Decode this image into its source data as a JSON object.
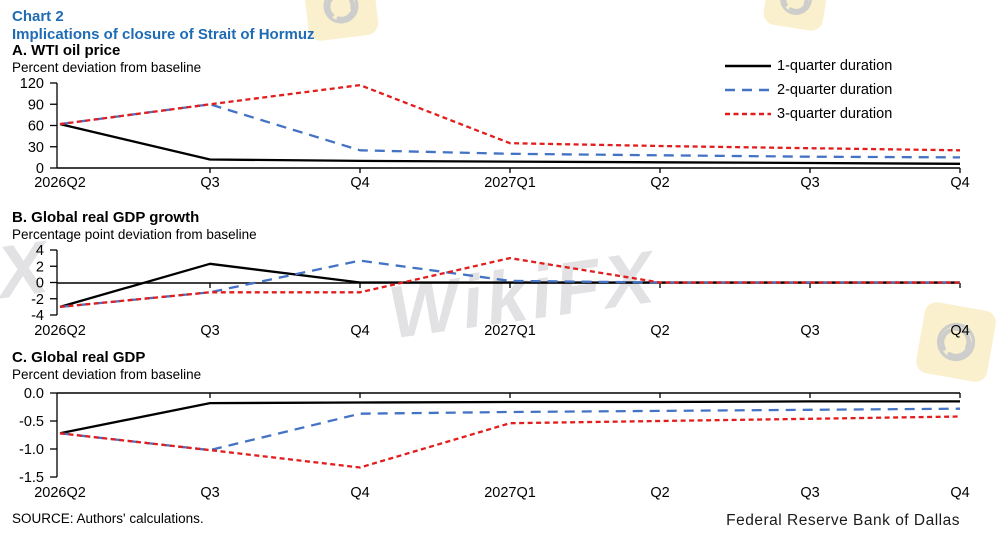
{
  "header": {
    "chart_label": "Chart 2",
    "title": "Implications of closure of Strait of Hormuz"
  },
  "legend": {
    "position": "top-right",
    "items": [
      {
        "label": "1-quarter duration"
      },
      {
        "label": "2-quarter duration"
      },
      {
        "label": "3-quarter duration"
      }
    ]
  },
  "colors": {
    "header_blue": "#1f6cb5",
    "series_1_quarter": "#000000",
    "series_2_quarter": "#4472c4",
    "series_3_quarter": "#e21d1d"
  },
  "watermark": {
    "text": "WikiFX"
  },
  "source_note": "SOURCE: Authors' calculations.",
  "footer": {
    "publisher": "Federal Reserve Bank of Dallas"
  },
  "chart_data": [
    {
      "type": "line",
      "panel_label": "A. WTI oil price",
      "axis_note": "Percent deviation from baseline",
      "x_categories": [
        "2026Q2",
        "Q3",
        "Q4",
        "2027Q1",
        "Q2",
        "Q3",
        "Q4"
      ],
      "ylim": [
        0,
        120
      ],
      "y_ticks": [
        "120",
        "90",
        "60",
        "30",
        "0"
      ],
      "grid": false,
      "series": [
        {
          "name": "1-quarter duration",
          "style": "solid",
          "color": "#000000",
          "values": [
            62,
            12,
            10,
            9,
            8,
            7,
            6
          ]
        },
        {
          "name": "2-quarter duration",
          "style": "dashed",
          "color": "#4472c4",
          "values": [
            62,
            90,
            25,
            20,
            18,
            16,
            15
          ]
        },
        {
          "name": "3-quarter duration",
          "style": "dotted",
          "color": "#e21d1d",
          "values": [
            62,
            90,
            117,
            35,
            31,
            28,
            25
          ]
        }
      ]
    },
    {
      "type": "line",
      "panel_label": "B. Global real GDP growth",
      "axis_note": "Percentage point deviation from baseline",
      "x_categories": [
        "2026Q2",
        "Q3",
        "Q4",
        "2027Q1",
        "Q2",
        "Q3",
        "Q4"
      ],
      "ylim": [
        -4,
        4
      ],
      "y_ticks": [
        "4",
        "2",
        "0",
        "-2",
        "-4"
      ],
      "grid": false,
      "series": [
        {
          "name": "1-quarter duration",
          "style": "solid",
          "color": "#000000",
          "values": [
            -3,
            2.3,
            0,
            0,
            0,
            0,
            0
          ]
        },
        {
          "name": "2-quarter duration",
          "style": "dashed",
          "color": "#4472c4",
          "values": [
            -3,
            -1.2,
            2.7,
            0.2,
            0,
            0,
            0
          ]
        },
        {
          "name": "3-quarter duration",
          "style": "dotted",
          "color": "#e21d1d",
          "values": [
            -3,
            -1.2,
            -1.2,
            3,
            0,
            0,
            0
          ]
        }
      ]
    },
    {
      "type": "line",
      "panel_label": "C. Global real GDP",
      "axis_note": "Percent deviation from baseline",
      "x_categories": [
        "2026Q2",
        "Q3",
        "Q4",
        "2027Q1",
        "Q2",
        "Q3",
        "Q4"
      ],
      "ylim": [
        -1.5,
        0
      ],
      "y_ticks": [
        "0.0",
        "-0.5",
        "-1.0",
        "-1.5"
      ],
      "grid": false,
      "series": [
        {
          "name": "1-quarter duration",
          "style": "solid",
          "color": "#000000",
          "values": [
            -0.72,
            -0.18,
            -0.17,
            -0.16,
            -0.16,
            -0.15,
            -0.15
          ]
        },
        {
          "name": "2-quarter duration",
          "style": "dashed",
          "color": "#4472c4",
          "values": [
            -0.72,
            -1.02,
            -0.37,
            -0.34,
            -0.32,
            -0.3,
            -0.28
          ]
        },
        {
          "name": "3-quarter duration",
          "style": "dotted",
          "color": "#e21d1d",
          "values": [
            -0.72,
            -1.02,
            -1.33,
            -0.54,
            -0.5,
            -0.46,
            -0.42
          ]
        }
      ]
    }
  ]
}
